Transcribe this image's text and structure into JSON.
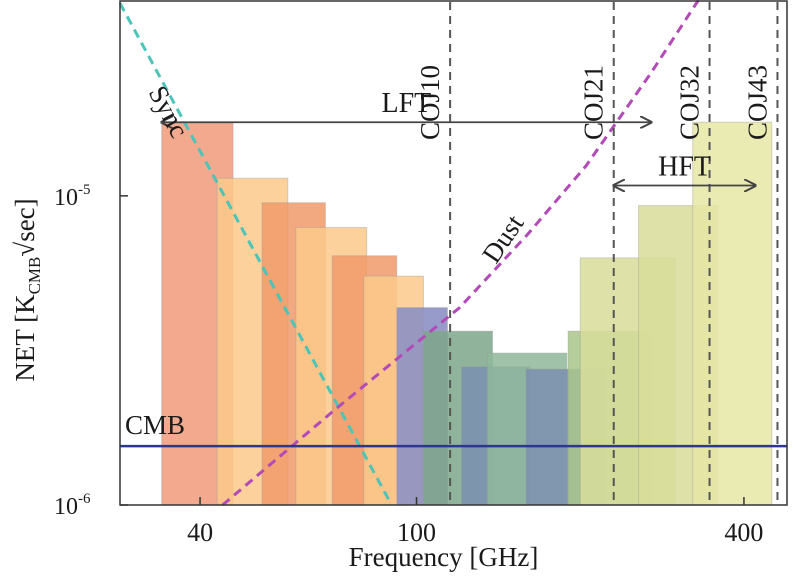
{
  "chart_data": {
    "type": "bar",
    "xlabel": "Frequency [GHz]",
    "ylabel_main": "NET [K",
    "ylabel_sub": "CMB",
    "ylabel_tail": "√sec]",
    "x_scale": "log",
    "y_scale": "log",
    "xlim": [
      28.5,
      480
    ],
    "ylim": [
      1e-06,
      4.3e-05
    ],
    "x_ticks": [
      {
        "value": 40,
        "label": "40"
      },
      {
        "value": 100,
        "label": "100"
      },
      {
        "value": 400,
        "label": "400"
      }
    ],
    "y_ticks": [
      {
        "value": 1e-05,
        "label_base": "10",
        "label_exp": "-5"
      },
      {
        "value": 1e-06,
        "label_base": "10",
        "label_exp": "-6"
      }
    ],
    "bars": [
      {
        "x0": 34,
        "x1": 46,
        "value": 1.72e-05,
        "color": "#f19a7a",
        "opacity": 0.85
      },
      {
        "x0": 43,
        "x1": 58,
        "value": 1.14e-05,
        "color": "#fbc98a",
        "opacity": 0.85
      },
      {
        "x0": 52,
        "x1": 68,
        "value": 9.5e-06,
        "color": "#f19a6a",
        "opacity": 0.85
      },
      {
        "x0": 60,
        "x1": 81,
        "value": 7.9e-06,
        "color": "#fbc98a",
        "opacity": 0.85
      },
      {
        "x0": 70,
        "x1": 92,
        "value": 6.4e-06,
        "color": "#f19a6a",
        "opacity": 0.85
      },
      {
        "x0": 80,
        "x1": 103,
        "value": 5.5e-06,
        "color": "#fbc98a",
        "opacity": 0.85
      },
      {
        "x0": 92,
        "x1": 114,
        "value": 4.35e-06,
        "color": "#8c90c3",
        "opacity": 0.9
      },
      {
        "x0": 103,
        "x1": 138,
        "value": 3.65e-06,
        "color": "#7da689",
        "opacity": 0.85
      },
      {
        "x0": 121,
        "x1": 162,
        "value": 2.8e-06,
        "color": "#7a8fb0",
        "opacity": 0.85
      },
      {
        "x0": 135,
        "x1": 189,
        "value": 3.1e-06,
        "color": "#8fb79a",
        "opacity": 0.85
      },
      {
        "x0": 159,
        "x1": 222,
        "value": 2.75e-06,
        "color": "#7a8fb0",
        "opacity": 0.85
      },
      {
        "x0": 190,
        "x1": 271,
        "value": 3.65e-06,
        "color": "#a8c58a",
        "opacity": 0.85
      },
      {
        "x0": 200,
        "x1": 299,
        "value": 6.3e-06,
        "color": "#d8dd9a",
        "opacity": 0.85
      },
      {
        "x0": 256,
        "x1": 357,
        "value": 9.3e-06,
        "color": "#d8dd9a",
        "opacity": 0.85
      },
      {
        "x0": 322,
        "x1": 450,
        "value": 1.73e-05,
        "color": "#e6e6a6",
        "opacity": 0.85
      }
    ],
    "vlines": [
      {
        "x": 115.3,
        "label": "COJ10"
      },
      {
        "x": 230.5,
        "label": "COJ21"
      },
      {
        "x": 345.8,
        "label": "COJ32"
      },
      {
        "x": 461.0,
        "label": "COJ43"
      }
    ],
    "cmb_line": {
      "value": 1.55e-06,
      "label": "CMB",
      "color": "#2d3690"
    },
    "sync": {
      "label": "Sync",
      "color": "#4cc4b8",
      "points": [
        [
          28.5,
          4.2e-05
        ],
        [
          90,
          1e-06
        ]
      ]
    },
    "dust": {
      "label": "Dust",
      "color": "#b24ab8",
      "points": [
        [
          44,
          1e-06
        ],
        [
          70,
          2e-06
        ],
        [
          120,
          4.35e-06
        ],
        [
          160,
          7.5e-06
        ],
        [
          205,
          1.25e-05
        ],
        [
          270,
          2.5e-05
        ],
        [
          330,
          4.3e-05
        ]
      ]
    },
    "ranges": [
      {
        "label": "LFT",
        "x0": 34,
        "x1": 270,
        "y": 1.73e-05
      },
      {
        "label": "HFT",
        "x0": 230.5,
        "x1": 420,
        "y": 1.08e-05
      }
    ]
  }
}
